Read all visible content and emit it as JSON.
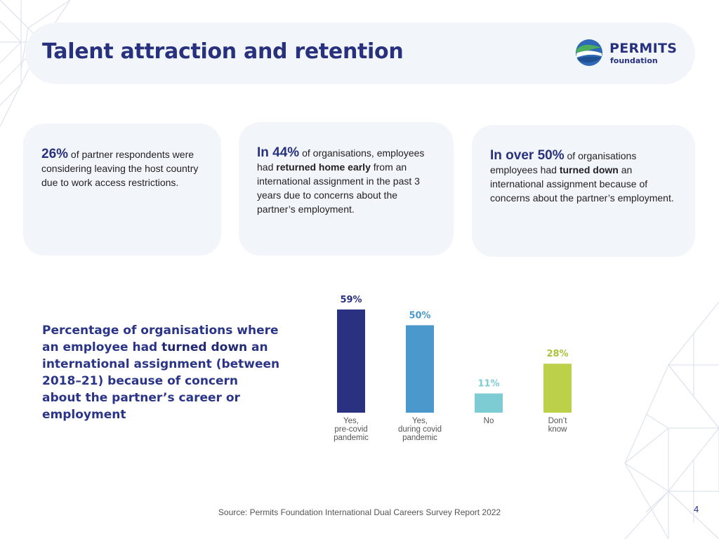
{
  "header": {
    "title": "Talent attraction and retention",
    "logo": {
      "name": "PERMITS",
      "sub": "foundation"
    }
  },
  "cards": [
    {
      "highlight": "26%",
      "text": " of partner respondents were considering leaving the host country due to work access restrictions."
    },
    {
      "highlight": "In 44%",
      "text_before": " of organisations, employees had ",
      "bold": "returned home early",
      "text_after": " from an international assignment in the past 3 years due to concerns about the partner’s employment."
    },
    {
      "highlight": "In over 50%",
      "text_before": " of organisations employees had ",
      "bold": "turned down",
      "text_after": " an international assignment because of concerns about the partner’s employment."
    }
  ],
  "chart_caption": {
    "before": "Percentage of organisations where an employee had ",
    "bold": "turned down",
    "after": "  an international assignment (between 2018–21) because of concern about the partner’s career or employment"
  },
  "chart_data": {
    "type": "bar",
    "title": "",
    "xlabel": "",
    "ylabel": "",
    "ylim": [
      0,
      59
    ],
    "categories": [
      [
        "Yes,",
        "pre-covid",
        "pandemic"
      ],
      [
        "Yes,",
        "during covid",
        "pandemic"
      ],
      [
        "No"
      ],
      [
        "Don’t",
        "know"
      ]
    ],
    "values": [
      59,
      50,
      11,
      28
    ],
    "value_labels": [
      "59%",
      "50%",
      "11%",
      "28%"
    ],
    "colors": [
      "#2a3180",
      "#4a98cc",
      "#7dccd4",
      "#bcd04a"
    ],
    "label_colors": [
      "#2a3180",
      "#4a98cc",
      "#7dccd4",
      "#a9c23a"
    ]
  },
  "footer": {
    "source": "Source: Permits Foundation International Dual Careers Survey Report 2022",
    "page_number": "4"
  },
  "colors": {
    "navy": "#28317d",
    "card_bg": "#f2f6fb",
    "pattern": "#dfe3ee"
  }
}
